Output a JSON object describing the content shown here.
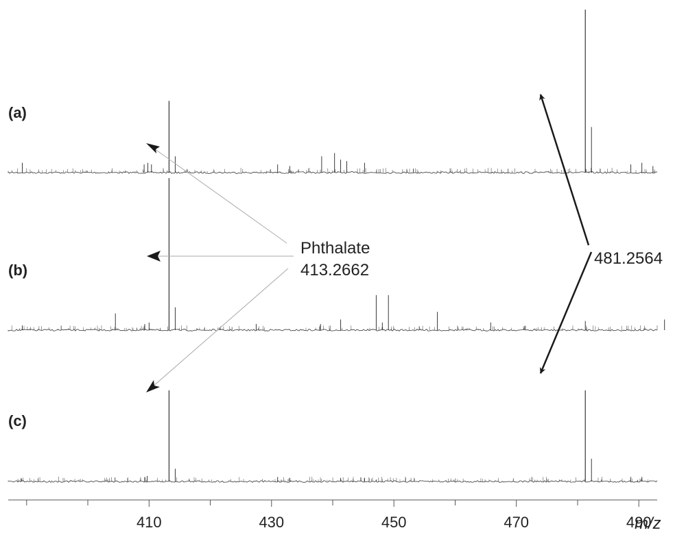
{
  "chart_data": {
    "type": "line",
    "xlabel": "m/z",
    "xlim": [
      387,
      493
    ],
    "x_ticks": [
      410,
      430,
      450,
      470,
      490
    ],
    "x_minor_ticks": [
      390,
      400,
      420,
      440,
      460,
      480
    ],
    "grid": false,
    "panels": [
      {
        "label": "(a)",
        "peaks": [
          {
            "mz": 389.3,
            "rel": 0.06
          },
          {
            "mz": 409.2,
            "rel": 0.05
          },
          {
            "mz": 409.8,
            "rel": 0.06
          },
          {
            "mz": 410.4,
            "rel": 0.05
          },
          {
            "mz": 413.27,
            "rel": 0.44
          },
          {
            "mz": 414.27,
            "rel": 0.1
          },
          {
            "mz": 431.0,
            "rel": 0.05
          },
          {
            "mz": 433.0,
            "rel": 0.04
          },
          {
            "mz": 438.2,
            "rel": 0.1
          },
          {
            "mz": 440.3,
            "rel": 0.12
          },
          {
            "mz": 441.3,
            "rel": 0.08
          },
          {
            "mz": 442.3,
            "rel": 0.07
          },
          {
            "mz": 445.2,
            "rel": 0.06
          },
          {
            "mz": 481.2564,
            "rel": 1.0
          },
          {
            "mz": 482.26,
            "rel": 0.28
          },
          {
            "mz": 488.7,
            "rel": 0.05
          },
          {
            "mz": 490.5,
            "rel": 0.06
          },
          {
            "mz": 492.3,
            "rel": 0.04
          }
        ]
      },
      {
        "label": "(b)",
        "peaks": [
          {
            "mz": 389.3,
            "rel": 0.03
          },
          {
            "mz": 404.5,
            "rel": 0.11
          },
          {
            "mz": 409.3,
            "rel": 0.04
          },
          {
            "mz": 410.0,
            "rel": 0.05
          },
          {
            "mz": 413.27,
            "rel": 1.0
          },
          {
            "mz": 414.27,
            "rel": 0.15
          },
          {
            "mz": 427.5,
            "rel": 0.04
          },
          {
            "mz": 438.0,
            "rel": 0.04
          },
          {
            "mz": 441.3,
            "rel": 0.07
          },
          {
            "mz": 447.1,
            "rel": 0.23
          },
          {
            "mz": 448.1,
            "rel": 0.05
          },
          {
            "mz": 449.1,
            "rel": 0.23
          },
          {
            "mz": 457.1,
            "rel": 0.12
          },
          {
            "mz": 465.8,
            "rel": 0.05
          },
          {
            "mz": 481.26,
            "rel": 0.06
          },
          {
            "mz": 494.2,
            "rel": 0.07
          }
        ]
      },
      {
        "label": "(c)",
        "peaks": [
          {
            "mz": 409.3,
            "rel": 0.05
          },
          {
            "mz": 409.7,
            "rel": 0.06
          },
          {
            "mz": 413.27,
            "rel": 1.0
          },
          {
            "mz": 414.27,
            "rel": 0.14
          },
          {
            "mz": 431.0,
            "rel": 0.05
          },
          {
            "mz": 433.0,
            "rel": 0.04
          },
          {
            "mz": 441.3,
            "rel": 0.04
          },
          {
            "mz": 445.2,
            "rel": 0.04
          },
          {
            "mz": 447.1,
            "rel": 0.02
          },
          {
            "mz": 481.2564,
            "rel": 1.0
          },
          {
            "mz": 482.26,
            "rel": 0.25
          },
          {
            "mz": 488.7,
            "rel": 0.05
          },
          {
            "mz": 490.5,
            "rel": 0.05
          }
        ]
      }
    ],
    "annotations": [
      {
        "lines": [
          "Phthalate",
          "413.2662"
        ],
        "arrow_color": "gray",
        "targets": [
          "(a)",
          "(b)",
          "(c)"
        ]
      },
      {
        "lines": [
          "481.2564"
        ],
        "arrow_color": "black",
        "targets": [
          "(a)",
          "(c)"
        ]
      }
    ]
  }
}
